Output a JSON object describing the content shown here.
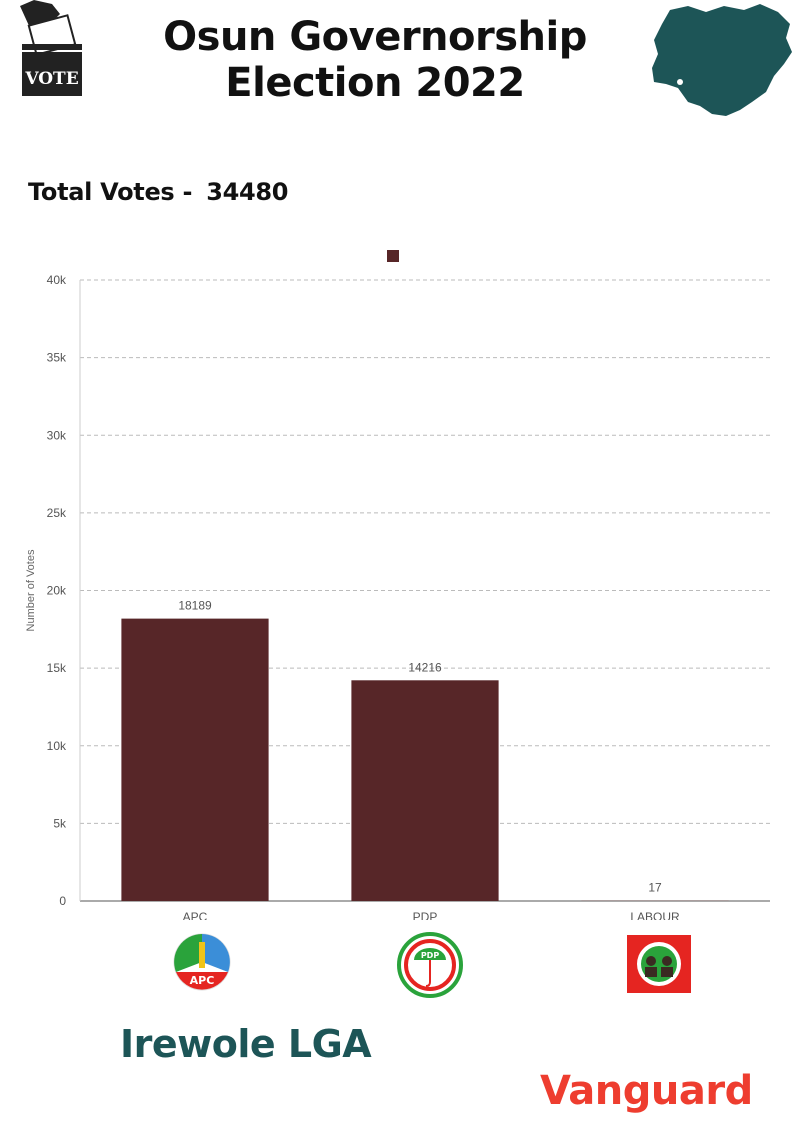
{
  "header": {
    "title_line1": "Osun Governorship",
    "title_line2": "Election 2022",
    "vote_box_label": "VOTE"
  },
  "total": {
    "label": "Total Votes -",
    "value": "34480"
  },
  "lga": "Irewole LGA",
  "brand": "Vanguard",
  "logos": {
    "apc_text": "APC",
    "pdp_text": "PDP"
  },
  "colors": {
    "bar": "#572628",
    "map": "#1d5557",
    "lga_text": "#1d5557",
    "brand": "#ee3d2f"
  },
  "chart_data": {
    "type": "bar",
    "categories": [
      "APC",
      "PDP",
      "LABOUR"
    ],
    "values": [
      18189,
      14216,
      17
    ],
    "ylabel": "Number of Votes",
    "ylim": [
      0,
      40000
    ],
    "yticks": [
      0,
      5000,
      10000,
      15000,
      20000,
      25000,
      30000,
      35000,
      40000
    ],
    "ytick_labels": [
      "0",
      "5k",
      "10k",
      "15k",
      "20k",
      "25k",
      "30k",
      "35k",
      "40k"
    ],
    "grid": true,
    "legend": "top-center"
  }
}
